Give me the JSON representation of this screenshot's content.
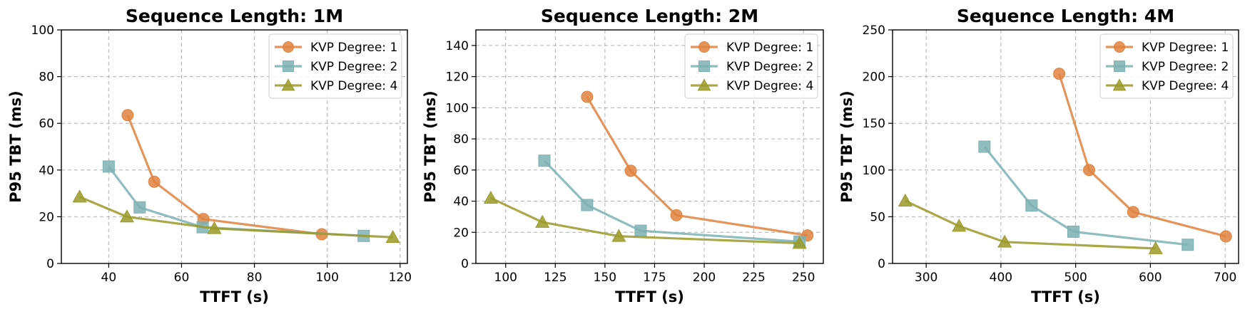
{
  "chart_data": [
    {
      "type": "line",
      "title": "Sequence Length: 1M",
      "xlabel": "TTFT (s)",
      "ylabel": "P95 TBT (ms)",
      "xlim": [
        27,
        122
      ],
      "ylim": [
        0,
        100
      ],
      "xticks": [
        40,
        60,
        80,
        100,
        120
      ],
      "yticks": [
        0,
        20,
        40,
        60,
        80,
        100
      ],
      "grid": true,
      "legend_position": "top-right",
      "series": [
        {
          "name": "KVP Degree: 1",
          "marker": "circle",
          "color": "#E0823F",
          "x": [
            45.2,
            52.5,
            66.0,
            98.5
          ],
          "y": [
            63.5,
            35.0,
            19.0,
            12.5
          ]
        },
        {
          "name": "KVP Degree: 2",
          "marker": "square",
          "color": "#7CB2B3",
          "x": [
            40.0,
            48.5,
            65.8,
            110.0
          ],
          "y": [
            41.5,
            24.0,
            15.5,
            11.8
          ]
        },
        {
          "name": "KVP Degree: 4",
          "marker": "triangle",
          "color": "#9A9A2A",
          "x": [
            32.0,
            45.0,
            69.0,
            118.0
          ],
          "y": [
            28.5,
            20.0,
            15.0,
            11.2
          ]
        }
      ]
    },
    {
      "type": "line",
      "title": "Sequence Length: 2M",
      "xlabel": "TTFT (s)",
      "ylabel": "P95 TBT (ms)",
      "xlim": [
        85,
        260
      ],
      "ylim": [
        0,
        150
      ],
      "xticks": [
        100,
        125,
        150,
        175,
        200,
        225,
        250
      ],
      "yticks": [
        0,
        20,
        40,
        60,
        80,
        100,
        120,
        140
      ],
      "grid": true,
      "legend_position": "top-right",
      "series": [
        {
          "name": "KVP Degree: 1",
          "marker": "circle",
          "color": "#E0823F",
          "x": [
            141.0,
            163.0,
            186.0,
            252.0
          ],
          "y": [
            107.0,
            59.5,
            31.0,
            18.0
          ]
        },
        {
          "name": "KVP Degree: 2",
          "marker": "square",
          "color": "#7CB2B3",
          "x": [
            119.5,
            141.0,
            168.0,
            248.0
          ],
          "y": [
            66.0,
            37.5,
            21.0,
            14.0
          ]
        },
        {
          "name": "KVP Degree: 4",
          "marker": "triangle",
          "color": "#9A9A2A",
          "x": [
            92.5,
            118.5,
            157.0,
            248.0
          ],
          "y": [
            42.0,
            26.5,
            17.5,
            13.0
          ]
        }
      ]
    },
    {
      "type": "line",
      "title": "Sequence Length: 4M",
      "xlabel": "TTFT (s)",
      "ylabel": "P95 TBT (ms)",
      "xlim": [
        255,
        718
      ],
      "ylim": [
        0,
        250
      ],
      "xticks": [
        300,
        400,
        500,
        600,
        700
      ],
      "yticks": [
        0,
        50,
        100,
        150,
        200,
        250
      ],
      "grid": true,
      "legend_position": "top-right",
      "series": [
        {
          "name": "KVP Degree: 1",
          "marker": "circle",
          "color": "#E0823F",
          "x": [
            478.0,
            518.0,
            577.0,
            701.0
          ],
          "y": [
            203.0,
            100.0,
            55.0,
            29.0
          ]
        },
        {
          "name": "KVP Degree: 2",
          "marker": "square",
          "color": "#7CB2B3",
          "x": [
            378.0,
            441.0,
            497.0,
            650.0
          ],
          "y": [
            125.0,
            62.0,
            34.0,
            20.0
          ]
        },
        {
          "name": "KVP Degree: 4",
          "marker": "triangle",
          "color": "#9A9A2A",
          "x": [
            272.0,
            344.0,
            405.0,
            607.0
          ],
          "y": [
            67.0,
            40.0,
            23.0,
            16.0
          ]
        }
      ]
    }
  ]
}
